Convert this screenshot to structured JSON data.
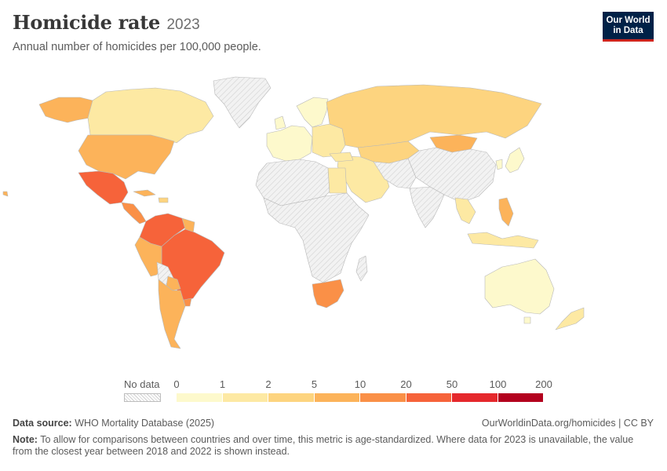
{
  "header": {
    "title": "Homicide rate",
    "year": "2023",
    "subtitle": "Annual number of homicides per 100,000 people."
  },
  "logo": {
    "line1": "Our World",
    "line2": "in Data"
  },
  "legend": {
    "nodata_label": "No data",
    "ticks": [
      "0",
      "1",
      "2",
      "5",
      "10",
      "20",
      "50",
      "100",
      "200"
    ],
    "colors": [
      "#fdf9cc",
      "#fde9a3",
      "#fdd47f",
      "#fcb35a",
      "#fa9047",
      "#f6633a",
      "#e5282c",
      "#b3001e"
    ],
    "nodata_pattern": "diagonal-hatch"
  },
  "map_colors": {
    "nodata": "#ededed",
    "bin_0_1": "#fdf9cc",
    "bin_1_2": "#fde9a3",
    "bin_2_5": "#fdd47f",
    "bin_5_10": "#fcb35a",
    "bin_10_20": "#fa9047",
    "bin_20_50": "#f6633a",
    "bin_50_100": "#e5282c"
  },
  "footer": {
    "source_label": "Data source:",
    "source_text": "WHO Mortality Database (2025)",
    "link": "OurWorldinData.org/homicides | CC BY",
    "note_label": "Note:",
    "note_text": "To allow for comparisons between countries and over time, this metric is age-standardized. Where data for 2023 is unavailable, the value from the closest year between 2018 and 2022 is shown instead."
  }
}
